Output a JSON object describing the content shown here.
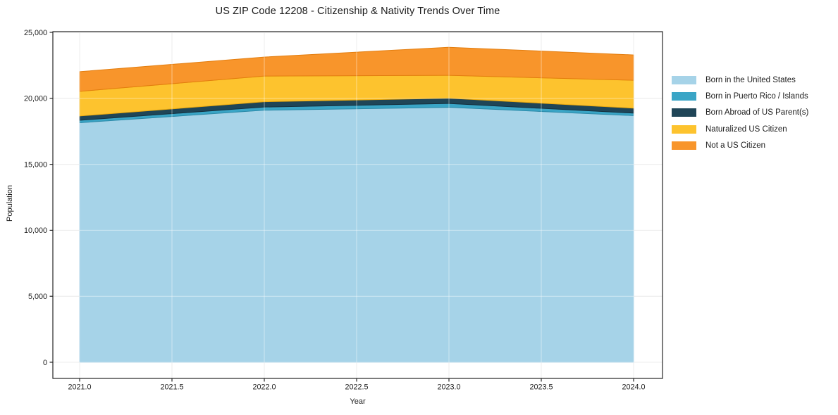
{
  "title": "US ZIP Code 12208 - Citizenship & Nativity Trends Over Time",
  "chart_data": {
    "type": "area",
    "stacked": true,
    "title": "US ZIP Code 12208 - Citizenship & Nativity Trends Over Time",
    "xlabel": "Year",
    "ylabel": "Population",
    "x": [
      2021,
      2022,
      2023,
      2024
    ],
    "xlim": [
      2021,
      2024
    ],
    "ylim": [
      0,
      25000
    ],
    "x_ticks": [
      "2021.0",
      "2021.5",
      "2022.0",
      "2022.5",
      "2023.0",
      "2023.5",
      "2024.0"
    ],
    "y_ticks": [
      "0",
      "5,000",
      "10,000",
      "15,000",
      "20,000",
      "25,000"
    ],
    "grid": true,
    "legend_position": "right-outside",
    "series": [
      {
        "name": "Born in the United States",
        "values": [
          18150,
          19100,
          19320,
          18690
        ],
        "color": "#a6d3e8",
        "edge": "#85bedb"
      },
      {
        "name": "Born in Puerto Rico / Islands",
        "values": [
          190,
          240,
          290,
          190
        ],
        "color": "#3aa5c6",
        "edge": "#2c8aa8"
      },
      {
        "name": "Born Abroad of US Parent(s)",
        "values": [
          320,
          400,
          400,
          375
        ],
        "color": "#1f4557",
        "edge": "#15303e"
      },
      {
        "name": "Naturalized US Citizen",
        "values": [
          1870,
          1950,
          1730,
          2115
        ],
        "color": "#fdc32e",
        "edge": "#eaa90f"
      },
      {
        "name": "Not a US Citizen",
        "values": [
          1490,
          1440,
          2130,
          1920
        ],
        "color": "#f8952b",
        "edge": "#e37d0e"
      }
    ],
    "cumulative_totals": [
      22020,
      23130,
      23870,
      23290
    ],
    "axis_color": "#262626",
    "text_color": "#1c1c1c",
    "grid_color": "#dedede"
  }
}
